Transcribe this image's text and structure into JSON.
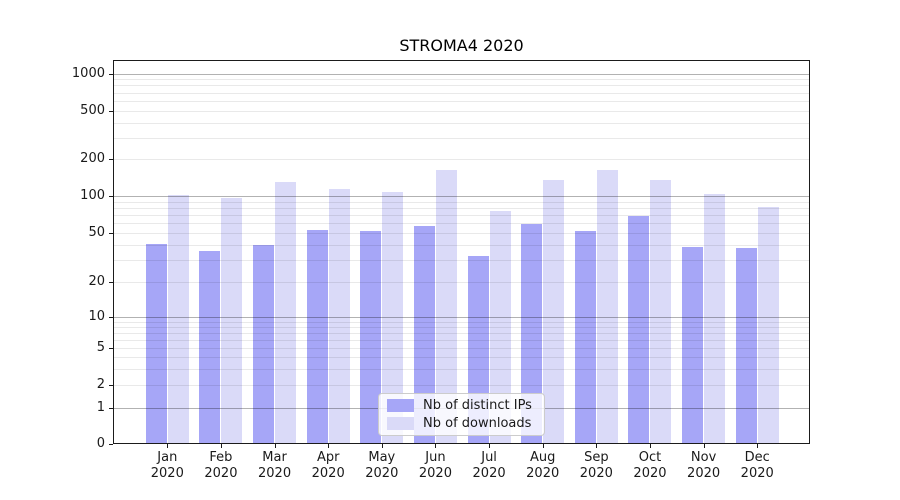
{
  "chart_data": {
    "type": "bar",
    "title": "STROMA4 2020",
    "yscale": "symlog",
    "grid": true,
    "legend_position": "lower center",
    "categories": [
      "Jan",
      "Feb",
      "Mar",
      "Apr",
      "May",
      "Jun",
      "Jul",
      "Aug",
      "Sep",
      "Oct",
      "Nov",
      "Dec"
    ],
    "category_year": "2020",
    "series": [
      {
        "name": "Nb of distinct IPs",
        "color": "#a6a6f7",
        "values": [
          40,
          35,
          39,
          52,
          51,
          56,
          32,
          58,
          51,
          67,
          38,
          37
        ]
      },
      {
        "name": "Nb of downloads",
        "color": "#dadaf8",
        "values": [
          100,
          94,
          127,
          111,
          106,
          160,
          74,
          134,
          161,
          134,
          102,
          80
        ]
      }
    ],
    "y_ticks": [
      0,
      1,
      2,
      5,
      10,
      20,
      50,
      100,
      200,
      500,
      1000
    ],
    "ylim": [
      0,
      1450
    ],
    "xlabel": "",
    "ylabel": ""
  }
}
